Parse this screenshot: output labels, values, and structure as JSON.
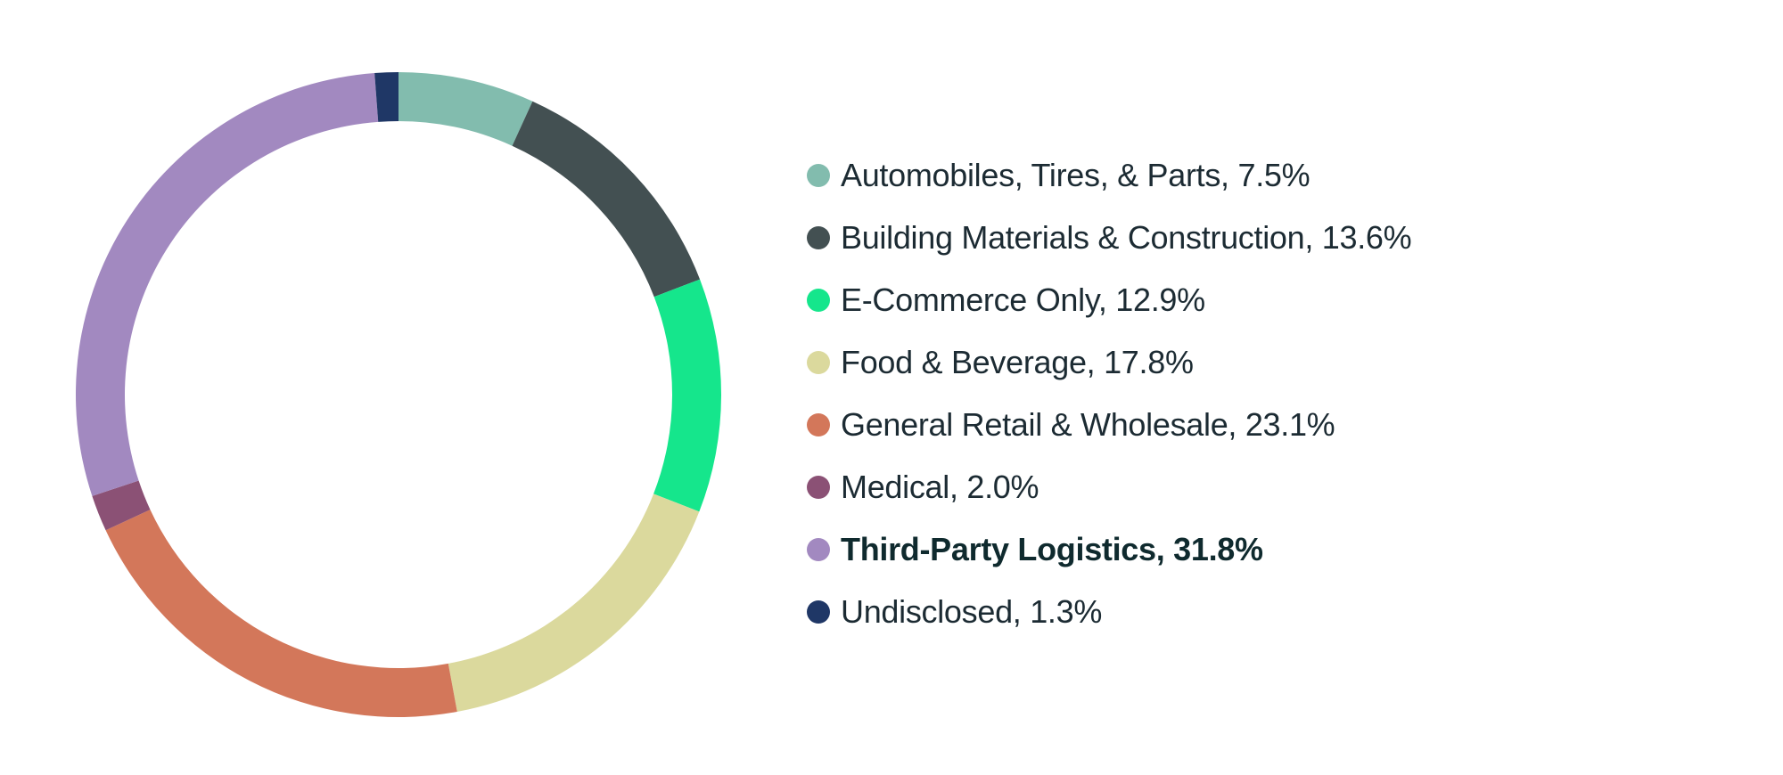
{
  "chart_data": {
    "type": "pie",
    "donut": true,
    "legend_position": "right",
    "slices": [
      {
        "label": "Automobiles, Tires, & Parts",
        "value": 7.5,
        "display": "Automobiles, Tires, & Parts, 7.5%",
        "color": "#82bcae",
        "emphasis": false
      },
      {
        "label": "Building Materials & Construction",
        "value": 13.6,
        "display": "Building Materials & Construction, 13.6%",
        "color": "#435052",
        "emphasis": false
      },
      {
        "label": "E-Commerce Only",
        "value": 12.9,
        "display": "E-Commerce Only, 12.9%",
        "color": "#15e68c",
        "emphasis": false
      },
      {
        "label": "Food & Beverage",
        "value": 17.8,
        "display": "Food & Beverage, 17.8%",
        "color": "#dbd99d",
        "emphasis": false
      },
      {
        "label": "General Retail & Wholesale",
        "value": 23.1,
        "display": "General Retail & Wholesale, 23.1%",
        "color": "#d3775a",
        "emphasis": false
      },
      {
        "label": "Medical",
        "value": 2.0,
        "display": "Medical, 2.0%",
        "color": "#8b5175",
        "emphasis": false
      },
      {
        "label": "Third-Party Logistics",
        "value": 31.8,
        "display": "Third-Party Logistics, 31.8%",
        "color": "#a289c0",
        "emphasis": true
      },
      {
        "label": "Undisclosed",
        "value": 1.3,
        "display": "Undisclosed, 1.3%",
        "color": "#1f3766",
        "emphasis": false
      }
    ]
  }
}
